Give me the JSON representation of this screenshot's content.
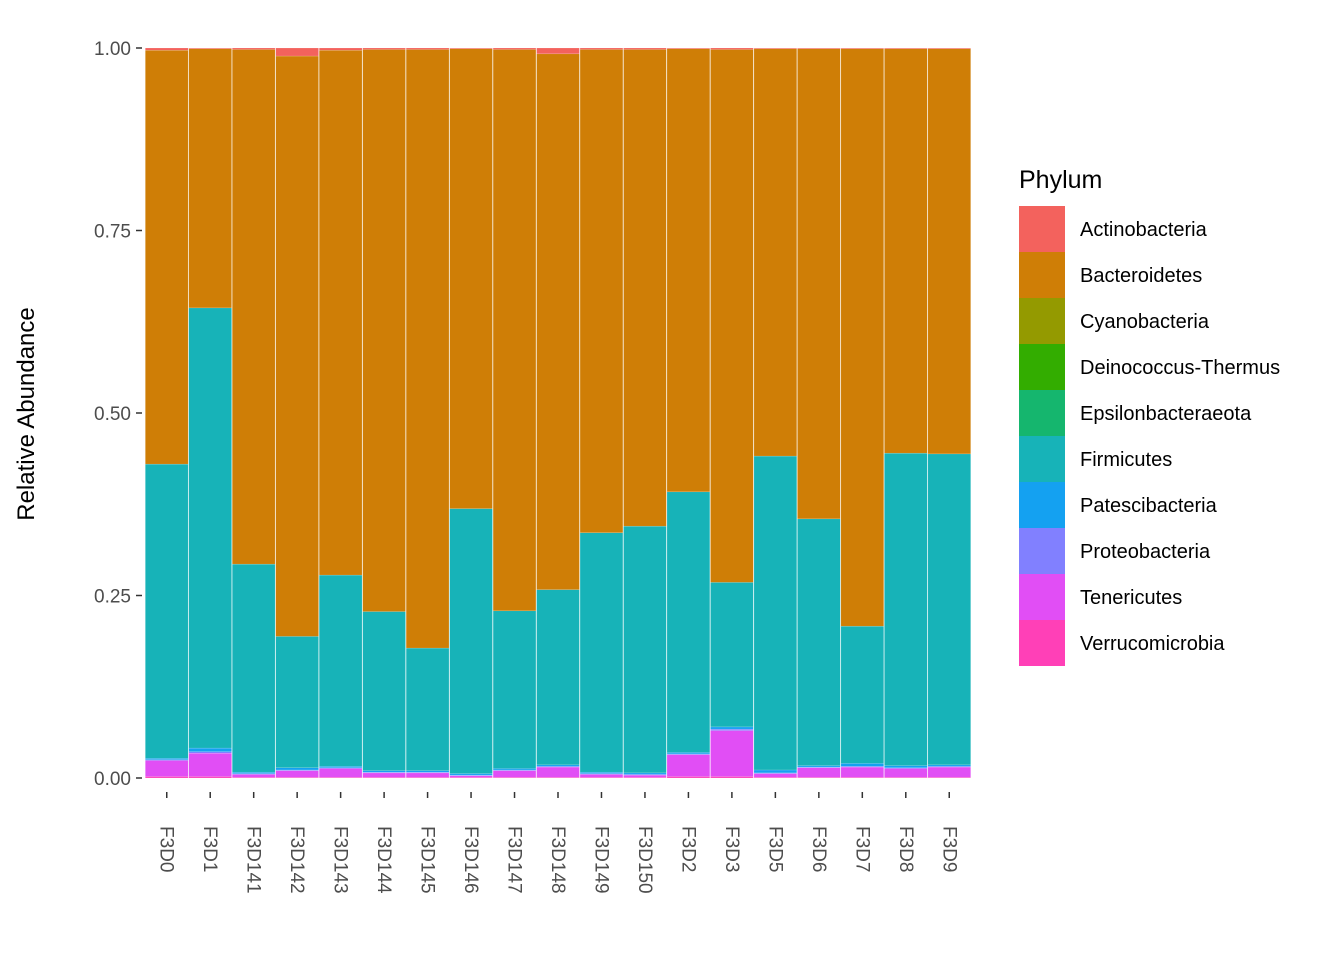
{
  "chart_data": {
    "type": "bar",
    "stacked": true,
    "title": "",
    "xlabel": "",
    "ylabel": "Relative Abundance",
    "ylim": [
      0,
      1
    ],
    "yticks": [
      "0.00",
      "0.25",
      "0.50",
      "0.75",
      "1.00"
    ],
    "ytick_values": [
      0,
      0.25,
      0.5,
      0.75,
      1
    ],
    "grid": false,
    "legend_position": "right",
    "legend_title": "Phylum",
    "categories": [
      "F3D0",
      "F3D1",
      "F3D141",
      "F3D142",
      "F3D143",
      "F3D144",
      "F3D145",
      "F3D146",
      "F3D147",
      "F3D148",
      "F3D149",
      "F3D150",
      "F3D2",
      "F3D3",
      "F3D5",
      "F3D6",
      "F3D7",
      "F3D8",
      "F3D9"
    ],
    "series": [
      {
        "name": "Verrucomicrobia",
        "color": "#FF40B7",
        "values": [
          0.002,
          0.002,
          0.001,
          0.001,
          0.001,
          0.001,
          0.001,
          0.001,
          0.001,
          0.001,
          0.001,
          0.001,
          0.002,
          0.002,
          0.001,
          0.001,
          0.001,
          0.001,
          0.001
        ]
      },
      {
        "name": "Tenericutes",
        "color": "#E14EF5",
        "values": [
          0.022,
          0.032,
          0.004,
          0.009,
          0.012,
          0.006,
          0.006,
          0.002,
          0.009,
          0.014,
          0.004,
          0.003,
          0.03,
          0.063,
          0.005,
          0.013,
          0.014,
          0.012,
          0.014
        ]
      },
      {
        "name": "Proteobacteria",
        "color": "#8180FF",
        "values": [
          0.001,
          0.002,
          0.001,
          0.001,
          0.001,
          0.001,
          0.001,
          0.001,
          0.001,
          0.001,
          0.001,
          0.001,
          0.001,
          0.002,
          0.001,
          0.001,
          0.001,
          0.001,
          0.001
        ]
      },
      {
        "name": "Patescibacteria",
        "color": "#14A1F1",
        "values": [
          0.002,
          0.005,
          0.002,
          0.003,
          0.002,
          0.002,
          0.002,
          0.002,
          0.002,
          0.002,
          0.002,
          0.002,
          0.002,
          0.003,
          0.004,
          0.002,
          0.004,
          0.003,
          0.002
        ]
      },
      {
        "name": "Firmicutes",
        "color": "#17B3B8",
        "values": [
          0.403,
          0.603,
          0.285,
          0.18,
          0.262,
          0.218,
          0.168,
          0.363,
          0.216,
          0.24,
          0.328,
          0.338,
          0.357,
          0.198,
          0.43,
          0.338,
          0.188,
          0.428,
          0.426
        ]
      },
      {
        "name": "Epsilonbacteraeota",
        "color": "#15B66E",
        "values": [
          0,
          0,
          0,
          0,
          0,
          0,
          0,
          0,
          0,
          0,
          0,
          0,
          0,
          0,
          0,
          0,
          0,
          0,
          0
        ]
      },
      {
        "name": "Deinococcus-Thermus",
        "color": "#33AD00",
        "values": [
          0,
          0,
          0,
          0,
          0,
          0,
          0,
          0,
          0,
          0,
          0,
          0,
          0,
          0,
          0,
          0,
          0,
          0,
          0
        ]
      },
      {
        "name": "Cyanobacteria",
        "color": "#949A00",
        "values": [
          0,
          0,
          0,
          0,
          0,
          0,
          0,
          0,
          0,
          0,
          0,
          0,
          0,
          0,
          0,
          0,
          0,
          0,
          0
        ]
      },
      {
        "name": "Bacteroidetes",
        "color": "#CF7E06",
        "values": [
          0.567,
          0.355,
          0.705,
          0.795,
          0.719,
          0.77,
          0.82,
          0.63,
          0.769,
          0.734,
          0.662,
          0.653,
          0.607,
          0.73,
          0.558,
          0.644,
          0.791,
          0.554,
          0.555
        ]
      },
      {
        "name": "Actinobacteria",
        "color": "#F3625D",
        "values": [
          0.003,
          0.001,
          0.002,
          0.011,
          0.003,
          0.002,
          0.002,
          0.001,
          0.002,
          0.008,
          0.002,
          0.002,
          0.001,
          0.002,
          0.001,
          0.001,
          0.001,
          0.001,
          0.001
        ]
      }
    ],
    "legend_order": [
      "Actinobacteria",
      "Bacteroidetes",
      "Cyanobacteria",
      "Deinococcus-Thermus",
      "Epsilonbacteraeota",
      "Firmicutes",
      "Patescibacteria",
      "Proteobacteria",
      "Tenericutes",
      "Verrucomicrobia"
    ]
  }
}
